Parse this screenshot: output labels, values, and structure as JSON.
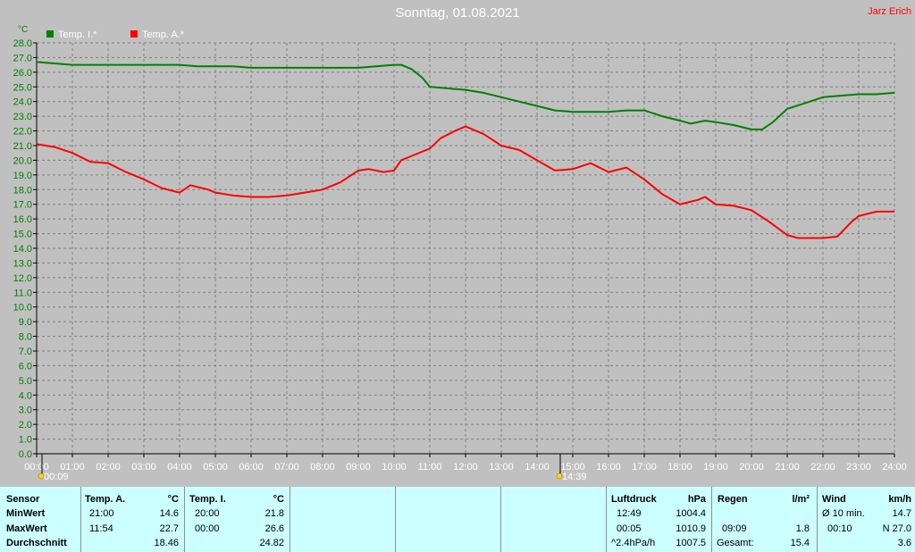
{
  "header": {
    "title": "Sonntag, 01.08.2021",
    "author": "Jarz Erich"
  },
  "chart_data": {
    "type": "line",
    "yunit": "°C",
    "ylim": [
      0,
      28
    ],
    "ytick_step": 1,
    "yticks": [
      "0.0",
      "1.0",
      "2.0",
      "3.0",
      "4.0",
      "5.0",
      "6.0",
      "7.0",
      "8.0",
      "9.0",
      "10.0",
      "11.0",
      "12.0",
      "13.0",
      "14.0",
      "15.0",
      "16.0",
      "17.0",
      "18.0",
      "19.0",
      "20.0",
      "21.0",
      "22.0",
      "23.0",
      "24.0",
      "25.0",
      "26.0",
      "27.0",
      "28.0"
    ],
    "xlim": [
      0,
      24
    ],
    "xticks": [
      "00:00",
      "01:00",
      "02:00",
      "03:00",
      "04:00",
      "05:00",
      "06:00",
      "07:00",
      "08:00",
      "09:00",
      "10:00",
      "11:00",
      "12:00",
      "13:00",
      "14:00",
      "15:00",
      "16:00",
      "17:00",
      "18:00",
      "19:00",
      "20:00",
      "21:00",
      "22:00",
      "23:00",
      "24:00"
    ],
    "grid": true,
    "legend_position": "top-left",
    "sun_markers": [
      {
        "x": 0.15,
        "label": "00:09"
      },
      {
        "x": 14.65,
        "label": "14:39"
      }
    ],
    "series": [
      {
        "name": "Temp. I.*",
        "color": "#008000",
        "x": [
          0,
          0.5,
          1,
          1.5,
          2,
          2.5,
          3,
          3.5,
          4,
          4.5,
          5,
          5.5,
          6,
          6.5,
          7,
          7.5,
          8,
          8.5,
          9,
          9.5,
          10,
          10.2,
          10.5,
          10.8,
          11,
          11.5,
          12,
          12.5,
          13,
          13.5,
          14,
          14.5,
          15,
          15.5,
          16,
          16.5,
          17,
          17.5,
          18,
          18.3,
          18.7,
          19,
          19.5,
          20,
          20.3,
          20.6,
          21,
          21.5,
          22,
          22.5,
          23,
          23.5,
          24
        ],
        "y": [
          26.7,
          26.6,
          26.5,
          26.5,
          26.5,
          26.5,
          26.5,
          26.5,
          26.5,
          26.4,
          26.4,
          26.4,
          26.3,
          26.3,
          26.3,
          26.3,
          26.3,
          26.3,
          26.3,
          26.4,
          26.5,
          26.5,
          26.2,
          25.6,
          25.0,
          24.9,
          24.8,
          24.6,
          24.3,
          24.0,
          23.7,
          23.4,
          23.3,
          23.3,
          23.3,
          23.4,
          23.4,
          23.0,
          22.7,
          22.5,
          22.7,
          22.6,
          22.4,
          22.1,
          22.1,
          22.6,
          23.5,
          23.9,
          24.3,
          24.4,
          24.5,
          24.5,
          24.6
        ]
      },
      {
        "name": "Temp. A.*",
        "color": "#ff0000",
        "x": [
          0,
          0.5,
          1,
          1.5,
          2,
          2.5,
          3,
          3.5,
          4,
          4.3,
          4.8,
          5,
          5.5,
          6,
          6.5,
          7,
          7.5,
          8,
          8.5,
          9,
          9.3,
          9.7,
          10,
          10.2,
          10.5,
          11,
          11.3,
          11.7,
          12,
          12.5,
          13,
          13.5,
          14,
          14.5,
          15,
          15.5,
          16,
          16.5,
          17,
          17.5,
          18,
          18.5,
          18.7,
          19,
          19.5,
          20,
          20.5,
          21,
          21.3,
          22,
          22.4,
          22.8,
          23,
          23.5,
          24
        ],
        "y": [
          21.1,
          20.9,
          20.5,
          19.9,
          19.8,
          19.2,
          18.7,
          18.1,
          17.8,
          18.3,
          18.0,
          17.8,
          17.6,
          17.5,
          17.5,
          17.6,
          17.8,
          18.0,
          18.5,
          19.3,
          19.4,
          19.2,
          19.3,
          20.0,
          20.3,
          20.8,
          21.5,
          22.0,
          22.3,
          21.8,
          21.0,
          20.7,
          20.0,
          19.3,
          19.4,
          19.8,
          19.2,
          19.5,
          18.7,
          17.7,
          17.0,
          17.3,
          17.5,
          17.0,
          16.9,
          16.6,
          15.8,
          14.9,
          14.7,
          14.7,
          14.8,
          15.8,
          16.2,
          16.5,
          16.5
        ]
      }
    ]
  },
  "summary": {
    "sensor": {
      "header": "Sensor",
      "rows": [
        "MinWert",
        "MaxWert",
        "Durchschnitt"
      ]
    },
    "temp_a": {
      "header": "Temp. A.",
      "unit": "°C",
      "rows": [
        {
          "time": "21:00",
          "value": "14.6"
        },
        {
          "time": "11:54",
          "value": "22.7"
        },
        {
          "time": "",
          "value": "18.46"
        }
      ]
    },
    "temp_i": {
      "header": "Temp. I.",
      "unit": "°C",
      "rows": [
        {
          "time": "20:00",
          "value": "21.8"
        },
        {
          "time": "00:00",
          "value": "26.6"
        },
        {
          "time": "",
          "value": "24.82"
        }
      ]
    },
    "luftdruck": {
      "header": "Luftdruck",
      "unit": "hPa",
      "rows": [
        {
          "time": "12:49",
          "value": "1004.4"
        },
        {
          "time": "00:05",
          "value": "1010.9"
        },
        {
          "time": "^2.4hPa/h",
          "value": "1007.5"
        }
      ]
    },
    "regen": {
      "header": "Regen",
      "unit": "l/m²",
      "rows": [
        {
          "time": "",
          "value": ""
        },
        {
          "time": "09:09",
          "value": "1.8"
        },
        {
          "time": "Gesamt:",
          "value": "15.4"
        }
      ]
    },
    "wind": {
      "header": "Wind",
      "unit": "km/h",
      "rows": [
        {
          "time": "Ø 10 min.",
          "value": "14.7"
        },
        {
          "time": "00:10",
          "value": "N 27.0"
        },
        {
          "time": "",
          "value": "3.6"
        }
      ]
    }
  }
}
